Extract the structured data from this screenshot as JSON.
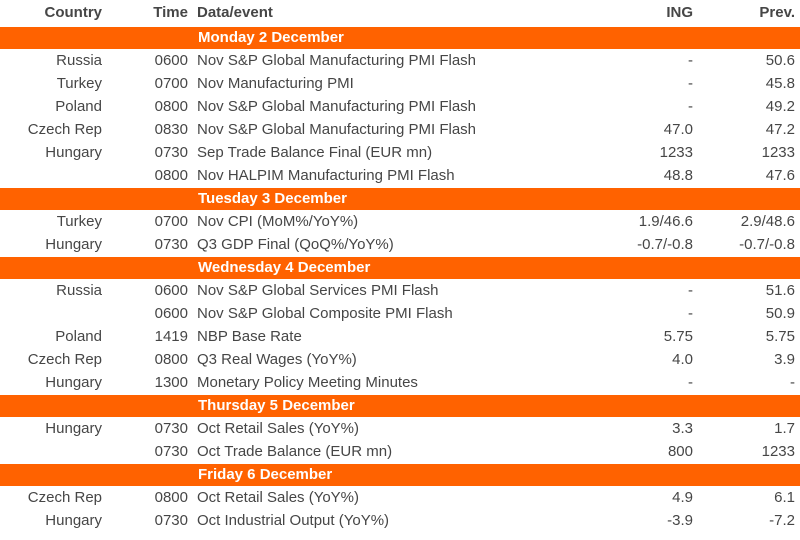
{
  "colors": {
    "accent_orange": "#FF6200",
    "text_gray": "#464646",
    "section_text": "#ffffff",
    "row_background": "#ffffff"
  },
  "table": {
    "columns": {
      "country": "Country",
      "time": "Time",
      "event": "Data/event",
      "ing": "ING",
      "prev": "Prev."
    },
    "rows": [
      {
        "type": "section",
        "label": "Monday 2 December"
      },
      {
        "type": "data",
        "country": "Russia",
        "time": "0600",
        "event": "Nov S&P Global Manufacturing PMI Flash",
        "ing": "-",
        "prev": "50.6"
      },
      {
        "type": "data",
        "country": "Turkey",
        "time": "0700",
        "event": "Nov Manufacturing PMI",
        "ing": "-",
        "prev": "45.8"
      },
      {
        "type": "data",
        "country": "Poland",
        "time": "0800",
        "event": "Nov S&P Global Manufacturing PMI Flash",
        "ing": "-",
        "prev": "49.2"
      },
      {
        "type": "data",
        "country": "Czech Rep",
        "time": "0830",
        "event": "Nov S&P Global Manufacturing PMI Flash",
        "ing": "47.0",
        "prev": "47.2"
      },
      {
        "type": "data",
        "country": "Hungary",
        "time": "0730",
        "event": "Sep Trade Balance Final (EUR mn)",
        "ing": "1233",
        "prev": "1233"
      },
      {
        "type": "data",
        "country": "",
        "time": "0800",
        "event": "Nov HALPIM Manufacturing PMI Flash",
        "ing": "48.8",
        "prev": "47.6"
      },
      {
        "type": "section",
        "label": "Tuesday 3 December"
      },
      {
        "type": "data",
        "country": "Turkey",
        "time": "0700",
        "event": "Nov CPI (MoM%/YoY%)",
        "ing": "1.9/46.6",
        "prev": "2.9/48.6"
      },
      {
        "type": "data",
        "country": "Hungary",
        "time": "0730",
        "event": "Q3 GDP Final (QoQ%/YoY%)",
        "ing": "-0.7/-0.8",
        "prev": "-0.7/-0.8"
      },
      {
        "type": "section",
        "label": "Wednesday 4 December"
      },
      {
        "type": "data",
        "country": "Russia",
        "time": "0600",
        "event": "Nov S&P Global Services PMI Flash",
        "ing": "-",
        "prev": "51.6"
      },
      {
        "type": "data",
        "country": "",
        "time": "0600",
        "event": "Nov S&P Global Composite PMI Flash",
        "ing": "-",
        "prev": "50.9"
      },
      {
        "type": "data",
        "country": "Poland",
        "time": "1419",
        "event": "NBP Base Rate",
        "ing": "5.75",
        "prev": "5.75"
      },
      {
        "type": "data",
        "country": "Czech Rep",
        "time": "0800",
        "event": "Q3 Real Wages (YoY%)",
        "ing": "4.0",
        "prev": "3.9"
      },
      {
        "type": "data",
        "country": "Hungary",
        "time": "1300",
        "event": "Monetary Policy Meeting Minutes",
        "ing": "-",
        "prev": "-"
      },
      {
        "type": "section",
        "label": "Thursday 5 December"
      },
      {
        "type": "data",
        "country": "Hungary",
        "time": "0730",
        "event": "Oct Retail Sales (YoY%)",
        "ing": "3.3",
        "prev": "1.7"
      },
      {
        "type": "data",
        "country": "",
        "time": "0730",
        "event": "Oct Trade Balance (EUR mn)",
        "ing": "800",
        "prev": "1233"
      },
      {
        "type": "section",
        "label": "Friday 6 December"
      },
      {
        "type": "data",
        "country": "Czech Rep",
        "time": "0800",
        "event": "Oct Retail Sales (YoY%)",
        "ing": "4.9",
        "prev": "6.1"
      },
      {
        "type": "data",
        "country": "Hungary",
        "time": "0730",
        "event": "Oct Industrial Output (YoY%)",
        "ing": "-3.9",
        "prev": "-7.2"
      }
    ]
  }
}
